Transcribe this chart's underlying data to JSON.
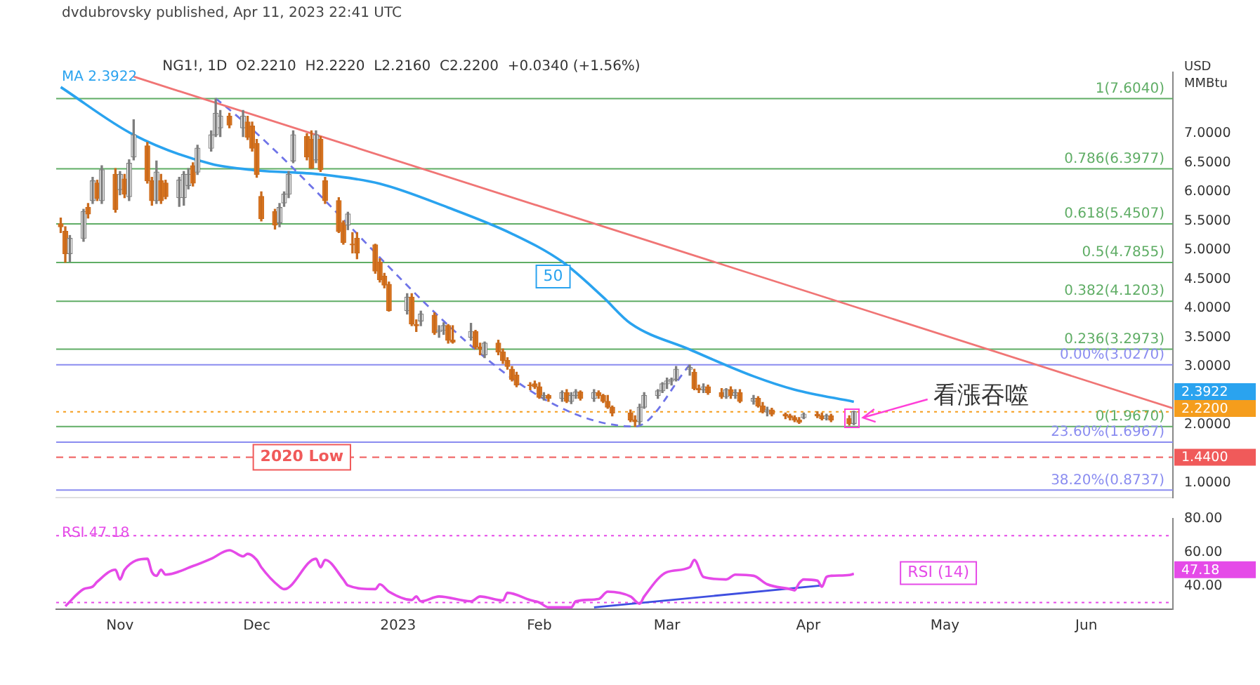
{
  "chart_data": [
    {
      "type": "candlestick",
      "title": "NG1!, 1D  O2.2210  H2.2220  L2.2160  C2.2200  +0.0340 (+1.56%)",
      "subtitle": "dvdubrovsky published, Apr 11, 2023 22:41 UTC",
      "ylabel": "USD\nMMBtu",
      "legend": "top left",
      "tick_labels": "y",
      "x": [
        "2022-10-19",
        "2022-10-20",
        "2022-10-21",
        "2022-10-24",
        "2022-10-25",
        "2022-10-26",
        "2022-10-27",
        "2022-10-28",
        "2022-10-31",
        "2022-11-01",
        "2022-11-02",
        "2022-11-03",
        "2022-11-04",
        "2022-11-07",
        "2022-11-08",
        "2022-11-09",
        "2022-11-10",
        "2022-11-11",
        "2022-11-14",
        "2022-11-15",
        "2022-11-16",
        "2022-11-17",
        "2022-11-18",
        "2022-11-21",
        "2022-11-22",
        "2022-11-23",
        "2022-11-25",
        "2022-11-28",
        "2022-11-29",
        "2022-11-30",
        "2022-12-01",
        "2022-12-02",
        "2022-12-05",
        "2022-12-06",
        "2022-12-07",
        "2022-12-08",
        "2022-12-09",
        "2022-12-12",
        "2022-12-13",
        "2022-12-14",
        "2022-12-15",
        "2022-12-16",
        "2022-12-19",
        "2022-12-20",
        "2022-12-21",
        "2022-12-22",
        "2022-12-23",
        "2022-12-27",
        "2022-12-28",
        "2022-12-29",
        "2022-12-30",
        "2023-01-03",
        "2023-01-04",
        "2023-01-05",
        "2023-01-06",
        "2023-01-09",
        "2023-01-10",
        "2023-01-11",
        "2023-01-12",
        "2023-01-13",
        "2023-01-17",
        "2023-01-18",
        "2023-01-19",
        "2023-01-20",
        "2023-01-23",
        "2023-01-24",
        "2023-01-25",
        "2023-01-26",
        "2023-01-27",
        "2023-01-30",
        "2023-01-31",
        "2023-02-01",
        "2023-02-02",
        "2023-02-03",
        "2023-02-06",
        "2023-02-07",
        "2023-02-08",
        "2023-02-09",
        "2023-02-10",
        "2023-02-13",
        "2023-02-14",
        "2023-02-15",
        "2023-02-16",
        "2023-02-17",
        "2023-02-21",
        "2023-02-22",
        "2023-02-23",
        "2023-02-24",
        "2023-02-27",
        "2023-02-28",
        "2023-03-01",
        "2023-03-02",
        "2023-03-03",
        "2023-03-06",
        "2023-03-07",
        "2023-03-08",
        "2023-03-09",
        "2023-03-10",
        "2023-03-13",
        "2023-03-14",
        "2023-03-15",
        "2023-03-16",
        "2023-03-17",
        "2023-03-20",
        "2023-03-21",
        "2023-03-22",
        "2023-03-23",
        "2023-03-24",
        "2023-03-27",
        "2023-03-28",
        "2023-03-29",
        "2023-03-30",
        "2023-03-31",
        "2023-04-03",
        "2023-04-04",
        "2023-04-05",
        "2023-04-06",
        "2023-04-10",
        "2023-04-11"
      ],
      "ohlc": [
        [
          5.45,
          5.55,
          5.3,
          5.4
        ],
        [
          5.32,
          5.4,
          4.79,
          4.94
        ],
        [
          4.94,
          5.25,
          4.8,
          5.2
        ],
        [
          5.2,
          5.7,
          5.15,
          5.66
        ],
        [
          5.73,
          5.8,
          5.55,
          5.62
        ],
        [
          5.85,
          6.25,
          5.8,
          6.19
        ],
        [
          6.15,
          6.2,
          5.85,
          5.89
        ],
        [
          5.85,
          6.45,
          5.8,
          6.38
        ],
        [
          6.3,
          6.4,
          5.65,
          5.7
        ],
        [
          6.04,
          6.35,
          5.95,
          6.3
        ],
        [
          6.22,
          6.3,
          5.9,
          5.96
        ],
        [
          5.92,
          6.55,
          5.85,
          6.49
        ],
        [
          6.6,
          7.24,
          6.55,
          6.98
        ],
        [
          6.79,
          6.85,
          6.15,
          6.19
        ],
        [
          6.19,
          6.25,
          5.77,
          5.85
        ],
        [
          5.85,
          6.53,
          5.8,
          6.34
        ],
        [
          6.19,
          6.3,
          5.8,
          5.85
        ],
        [
          6.15,
          6.2,
          5.88,
          5.92
        ],
        [
          5.9,
          6.25,
          5.75,
          6.2
        ],
        [
          5.9,
          6.35,
          5.77,
          6.3
        ],
        [
          6.11,
          6.4,
          6.05,
          6.3
        ],
        [
          6.45,
          6.5,
          6.1,
          6.15
        ],
        [
          6.34,
          6.8,
          6.3,
          6.75
        ],
        [
          6.75,
          7.05,
          6.7,
          6.98
        ],
        [
          6.98,
          7.604,
          6.95,
          7.35
        ],
        [
          7.1,
          7.4,
          6.95,
          7.3
        ],
        [
          7.3,
          7.35,
          7.1,
          7.15
        ],
        [
          7.1,
          7.4,
          6.95,
          7.3
        ],
        [
          7.2,
          7.3,
          6.9,
          6.94
        ],
        [
          7.13,
          7.2,
          6.7,
          6.75
        ],
        [
          6.83,
          6.9,
          6.25,
          6.3
        ],
        [
          5.92,
          6.0,
          5.5,
          5.54
        ],
        [
          5.66,
          5.7,
          5.36,
          5.43
        ],
        [
          5.47,
          5.8,
          5.4,
          5.73
        ],
        [
          5.81,
          6.0,
          5.75,
          5.96
        ],
        [
          5.96,
          6.35,
          5.9,
          6.3
        ],
        [
          6.53,
          7.05,
          6.5,
          6.98
        ],
        [
          6.95,
          7.0,
          6.55,
          6.6
        ],
        [
          6.9,
          7.05,
          6.4,
          6.41
        ],
        [
          6.55,
          7.05,
          6.5,
          6.98
        ],
        [
          6.9,
          6.95,
          6.35,
          6.38
        ],
        [
          6.19,
          6.25,
          5.8,
          5.85
        ],
        [
          5.85,
          5.9,
          5.3,
          5.32
        ],
        [
          5.47,
          5.5,
          5.1,
          5.13
        ],
        [
          5.43,
          5.65,
          5.35,
          5.62
        ],
        [
          5.1,
          5.3,
          4.95,
          5.09
        ],
        [
          5.2,
          5.3,
          4.85,
          4.95
        ],
        [
          5.09,
          5.1,
          4.6,
          4.64
        ],
        [
          4.79,
          4.85,
          4.45,
          4.49
        ],
        [
          4.55,
          4.6,
          4.35,
          4.4
        ],
        [
          4.41,
          4.45,
          3.95,
          3.96
        ],
        [
          3.96,
          4.25,
          3.9,
          4.19
        ],
        [
          4.19,
          4.25,
          3.7,
          3.73
        ],
        [
          3.72,
          3.8,
          3.6,
          3.7
        ],
        [
          3.78,
          3.95,
          3.7,
          3.9
        ],
        [
          3.88,
          3.92,
          3.55,
          3.58
        ],
        [
          3.6,
          3.7,
          3.5,
          3.62
        ],
        [
          3.62,
          3.75,
          3.55,
          3.7
        ],
        [
          3.7,
          3.72,
          3.4,
          3.45
        ],
        [
          3.45,
          3.7,
          3.4,
          3.42
        ],
        [
          3.5,
          3.74,
          3.45,
          3.6
        ],
        [
          3.6,
          3.62,
          3.3,
          3.33
        ],
        [
          3.33,
          3.4,
          3.2,
          3.3
        ],
        [
          3.2,
          3.42,
          3.15,
          3.4
        ],
        [
          3.4,
          3.45,
          3.2,
          3.25
        ],
        [
          3.25,
          3.3,
          3.05,
          3.1
        ],
        [
          3.1,
          3.15,
          2.95,
          3.0
        ],
        [
          2.95,
          3.0,
          2.75,
          2.78
        ],
        [
          2.85,
          2.9,
          2.65,
          2.68
        ],
        [
          2.68,
          2.72,
          2.6,
          2.67
        ],
        [
          2.7,
          2.75,
          2.62,
          2.65
        ],
        [
          2.65,
          2.72,
          2.45,
          2.47
        ],
        [
          2.47,
          2.55,
          2.42,
          2.5
        ],
        [
          2.5,
          2.52,
          2.4,
          2.45
        ],
        [
          2.45,
          2.58,
          2.4,
          2.55
        ],
        [
          2.55,
          2.6,
          2.38,
          2.4
        ],
        [
          2.4,
          2.55,
          2.36,
          2.5
        ],
        [
          2.5,
          2.6,
          2.45,
          2.56
        ],
        [
          2.56,
          2.58,
          2.42,
          2.45
        ],
        [
          2.45,
          2.6,
          2.4,
          2.55
        ],
        [
          2.55,
          2.58,
          2.45,
          2.5
        ],
        [
          2.5,
          2.52,
          2.38,
          2.4
        ],
        [
          2.4,
          2.5,
          2.28,
          2.3
        ],
        [
          2.3,
          2.32,
          2.15,
          2.2
        ],
        [
          2.2,
          2.25,
          2.05,
          2.08
        ],
        [
          2.08,
          2.15,
          1.967,
          2.05
        ],
        [
          2.05,
          2.35,
          2.0,
          2.3
        ],
        [
          2.3,
          2.55,
          2.28,
          2.5
        ],
        [
          2.5,
          2.6,
          2.45,
          2.58
        ],
        [
          2.58,
          2.72,
          2.55,
          2.7
        ],
        [
          2.7,
          2.8,
          2.62,
          2.75
        ],
        [
          2.75,
          2.8,
          2.68,
          2.78
        ],
        [
          2.78,
          3.0,
          2.75,
          2.95
        ],
        [
          2.95,
          3.027,
          2.85,
          2.98
        ],
        [
          2.9,
          2.95,
          2.6,
          2.62
        ],
        [
          2.62,
          2.68,
          2.55,
          2.6
        ],
        [
          2.6,
          2.7,
          2.55,
          2.65
        ],
        [
          2.65,
          2.68,
          2.52,
          2.55
        ],
        [
          2.55,
          2.62,
          2.45,
          2.48
        ],
        [
          2.48,
          2.62,
          2.45,
          2.6
        ],
        [
          2.6,
          2.65,
          2.45,
          2.5
        ],
        [
          2.5,
          2.6,
          2.45,
          2.55
        ],
        [
          2.55,
          2.6,
          2.38,
          2.4
        ],
        [
          2.4,
          2.5,
          2.35,
          2.45
        ],
        [
          2.45,
          2.48,
          2.3,
          2.32
        ],
        [
          2.32,
          2.38,
          2.2,
          2.22
        ],
        [
          2.22,
          2.3,
          2.15,
          2.25
        ],
        [
          2.25,
          2.28,
          2.15,
          2.18
        ],
        [
          2.18,
          2.2,
          2.1,
          2.15
        ],
        [
          2.15,
          2.18,
          2.08,
          2.12
        ],
        [
          2.12,
          2.15,
          2.05,
          2.08
        ],
        [
          2.08,
          2.12,
          2.02,
          2.04
        ],
        [
          2.12,
          2.2,
          2.1,
          2.18
        ],
        [
          2.18,
          2.22,
          2.12,
          2.15
        ],
        [
          2.15,
          2.2,
          2.08,
          2.1
        ],
        [
          2.1,
          2.18,
          2.08,
          2.15
        ],
        [
          2.15,
          2.18,
          2.05,
          2.08
        ],
        [
          2.1,
          2.15,
          1.99,
          2.02
        ],
        [
          2.02,
          2.23,
          2.0,
          2.22
        ]
      ],
      "series": [
        {
          "name": "MA 2.3922",
          "type": "line",
          "color": "#2aa3ef",
          "x": [
            "2022-10-19",
            "2022-11-04",
            "2022-11-21",
            "2022-12-01",
            "2022-12-15",
            "2022-12-28",
            "2023-01-12",
            "2023-01-26",
            "2023-02-06",
            "2023-02-15",
            "2023-02-21",
            "2023-03-06",
            "2023-03-20",
            "2023-03-29",
            "2023-04-11"
          ],
          "values": [
            7.8,
            6.98,
            6.48,
            6.37,
            6.3,
            6.14,
            5.73,
            5.28,
            4.8,
            4.19,
            3.74,
            3.29,
            2.83,
            2.6,
            2.3922
          ]
        },
        {
          "type": "line",
          "color": "#f07575",
          "x": [
            "2022-11-04",
            "2023-06-20"
          ],
          "values": [
            7.98,
            2.28
          ]
        },
        {
          "type": "line",
          "color": "#6f74e8",
          "line_style": "dashed",
          "x": [
            "2022-11-22",
            "2023-02-22",
            "2023-03-06"
          ],
          "values": [
            7.604,
            1.967,
            3.027
          ]
        }
      ],
      "xlim": [
        "2022-10-18",
        "2023-06-20"
      ],
      "ylim": [
        0.75,
        8.05
      ],
      "yticks": [
        {
          "value": 1,
          "label": "1.0000"
        },
        {
          "value": 2,
          "label": "2.0000"
        },
        {
          "value": 3,
          "label": "3.0000"
        },
        {
          "value": 3.5,
          "label": "3.5000"
        },
        {
          "value": 4,
          "label": "4.0000"
        },
        {
          "value": 4.5,
          "label": "4.5000"
        },
        {
          "value": 5,
          "label": "5.0000"
        },
        {
          "value": 5.5,
          "label": "5.5000"
        },
        {
          "value": 6,
          "label": "6.0000"
        },
        {
          "value": 6.5,
          "label": "6.5000"
        },
        {
          "value": 7,
          "label": "7.0000"
        }
      ],
      "ref_lines": [
        {
          "axis": "y",
          "value": 7.604,
          "label": "1(7.6040)",
          "color": "#5fad65"
        },
        {
          "axis": "y",
          "value": 6.3977,
          "label": "0.786(6.3977)",
          "color": "#5fad65"
        },
        {
          "axis": "y",
          "value": 5.4507,
          "label": "0.618(5.4507)",
          "color": "#5fad65"
        },
        {
          "axis": "y",
          "value": 4.7855,
          "label": "0.5(4.7855)",
          "color": "#5fad65"
        },
        {
          "axis": "y",
          "value": 4.1203,
          "label": "0.382(4.1203)",
          "color": "#5fad65"
        },
        {
          "axis": "y",
          "value": 3.2973,
          "label": "0.236(3.2973)",
          "color": "#5fad65"
        },
        {
          "axis": "y",
          "value": 1.967,
          "label": "0(1.9670)",
          "color": "#5fad65"
        },
        {
          "axis": "y",
          "value": 3.027,
          "label": "0.00%(3.0270)",
          "color": "#8a8cf0"
        },
        {
          "axis": "y",
          "value": 1.6967,
          "label": "23.60%(1.6967)",
          "color": "#8a8cf0"
        },
        {
          "axis": "y",
          "value": 0.8737,
          "label": "38.20%(0.8737)",
          "color": "#8a8cf0"
        },
        {
          "axis": "y",
          "value": 1.44,
          "label": "2020 Low",
          "color": "#f05a5a",
          "line_style": "dashed"
        },
        {
          "axis": "y",
          "value": 2.22,
          "label": "2.2200",
          "color": "#f59d1c",
          "line_style": "dotted"
        }
      ],
      "annotations": [
        "50",
        {
          "text": "看漲吞噬",
          "x": "2023-04-13",
          "y": 2.12
        },
        "1.4400",
        "2.3922"
      ]
    },
    {
      "type": "line",
      "legend": "top left",
      "series": [
        {
          "name": "RSI 47.18",
          "color": "#e54ae8",
          "x": [
            "2022-10-20",
            "2022-10-24",
            "2022-10-26",
            "2022-10-27",
            "2022-10-31",
            "2022-11-01",
            "2022-11-02",
            "2022-11-07",
            "2022-11-08",
            "2022-11-09",
            "2022-11-10",
            "2022-11-11",
            "2022-11-17",
            "2022-11-21",
            "2022-11-25",
            "2022-11-28",
            "2022-11-29",
            "2022-12-01",
            "2022-12-02",
            "2022-12-06",
            "2022-12-07",
            "2022-12-14",
            "2022-12-15",
            "2022-12-16",
            "2022-12-20",
            "2022-12-21",
            "2022-12-27",
            "2022-12-28",
            "2022-12-30",
            "2023-01-04",
            "2023-01-05",
            "2023-01-06",
            "2023-01-10",
            "2023-01-17",
            "2023-01-19",
            "2023-01-24",
            "2023-01-25",
            "2023-01-30",
            "2023-02-01",
            "2023-02-03",
            "2023-02-08",
            "2023-02-09",
            "2023-02-14",
            "2023-02-16",
            "2023-02-21",
            "2023-02-23",
            "2023-02-24",
            "2023-03-01",
            "2023-03-06",
            "2023-03-07",
            "2023-03-09",
            "2023-03-14",
            "2023-03-16",
            "2023-03-20",
            "2023-03-23",
            "2023-03-28",
            "2023-03-29",
            "2023-03-30",
            "2023-03-31",
            "2023-04-03",
            "2023-04-04",
            "2023-04-05",
            "2023-04-06",
            "2023-04-10",
            "2023-04-11"
          ],
          "values": [
            27.8,
            38,
            39.5,
            42.4,
            49.6,
            43.8,
            49.6,
            56.2,
            48.2,
            46,
            49.6,
            46.7,
            51.8,
            56.2,
            61.3,
            57.6,
            59.1,
            55.5,
            51.1,
            39.5,
            38,
            56.2,
            51.1,
            55.5,
            43.8,
            40.2,
            38,
            40.9,
            36.5,
            31.5,
            33.6,
            30.7,
            33.6,
            30.7,
            33.6,
            31.2,
            35.8,
            31.5,
            30,
            27.1,
            27.1,
            30.7,
            32.1,
            36.5,
            33.6,
            29.3,
            33.6,
            48.2,
            51.1,
            55.5,
            45.3,
            43.8,
            46.7,
            46,
            40.9,
            38,
            37.3,
            41.6,
            43.8,
            43.1,
            39.5,
            45.3,
            46,
            46.5,
            47.18
          ]
        },
        {
          "type": "line",
          "color": "#3f4fe0",
          "x": [
            "2023-02-13",
            "2023-04-04"
          ],
          "values": [
            27.1,
            40.2
          ]
        }
      ],
      "xlim": [
        "2022-10-18",
        "2023-06-20"
      ],
      "xticks": [
        {
          "value": "2022-11-01",
          "label": "Nov"
        },
        {
          "value": "2022-12-01",
          "label": "Dec"
        },
        {
          "value": "2023-01-01",
          "label": "2023"
        },
        {
          "value": "2023-02-01",
          "label": "Feb"
        },
        {
          "value": "2023-03-01",
          "label": "Mar"
        },
        {
          "value": "2023-04-01",
          "label": "Apr"
        },
        {
          "value": "2023-05-01",
          "label": "May"
        },
        {
          "value": "2023-06-01",
          "label": "Jun"
        }
      ],
      "ylim": [
        26,
        80
      ],
      "yticks": [
        {
          "value": 40,
          "label": "40.00"
        },
        {
          "value": 60,
          "label": "60.00"
        },
        {
          "value": 80,
          "label": "80.00"
        }
      ],
      "ref_lines": [
        {
          "axis": "y",
          "value": 70,
          "color": "#e54ae8",
          "line_style": "dotted"
        },
        {
          "axis": "y",
          "value": 30,
          "color": "#e54ae8",
          "line_style": "dotted"
        }
      ],
      "annotations": [
        "RSI (14)",
        "47.18"
      ]
    }
  ]
}
